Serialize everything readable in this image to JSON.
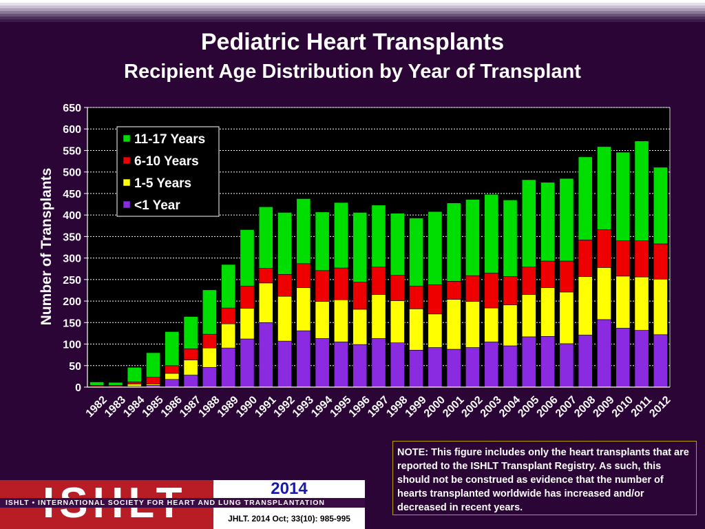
{
  "title": "Pediatric Heart Transplants",
  "subtitle": "Recipient Age Distribution by Year of Transplant",
  "note": "NOTE: This figure includes only the heart transplants that are reported to the ISHLT Transplant Registry.  As such, this should not be construed as evidence that the number of hearts transplanted worldwide has increased and/or decreased in recent years.",
  "logo": {
    "letters": "ISHLT",
    "org_line": "ISHLT • INTERNATIONAL SOCIETY FOR HEART AND LUNG TRANSPLANTATION",
    "year": "2014",
    "citation": "JHLT. 2014 Oct; 33(10): 985-995"
  },
  "colors": {
    "background": "#2a0535",
    "lt1": "#8a2be2",
    "y1_5": "#ffff00",
    "y6_10": "#ee0000",
    "y11_17": "#00dd00"
  },
  "chart_data": {
    "type": "bar",
    "stacked": true,
    "ylabel": "Number of Transplants",
    "xlabel": "",
    "ylim": [
      0,
      650
    ],
    "yticks": [
      0,
      50,
      100,
      150,
      200,
      250,
      300,
      350,
      400,
      450,
      500,
      550,
      600,
      650
    ],
    "grid": true,
    "legend": "top-left",
    "categories": [
      "1982",
      "1983",
      "1984",
      "1985",
      "1986",
      "1987",
      "1988",
      "1989",
      "1990",
      "1991",
      "1992",
      "1993",
      "1994",
      "1995",
      "1996",
      "1997",
      "1998",
      "1999",
      "2000",
      "2001",
      "2002",
      "2003",
      "2004",
      "2005",
      "2006",
      "2007",
      "2008",
      "2009",
      "2010",
      "2011",
      "2012"
    ],
    "series": [
      {
        "name": "<1 Year",
        "color": "#8a2be2",
        "values": [
          1,
          1,
          2,
          4,
          18,
          28,
          46,
          91,
          112,
          150,
          107,
          131,
          113,
          105,
          99,
          113,
          103,
          86,
          92,
          88,
          92,
          105,
          96,
          117,
          118,
          101,
          121,
          157,
          137,
          132,
          122
        ]
      },
      {
        "name": "1-5 Years",
        "color": "#ffff00",
        "values": [
          1,
          1,
          5,
          3,
          14,
          35,
          45,
          56,
          71,
          92,
          104,
          100,
          86,
          98,
          82,
          102,
          98,
          96,
          78,
          116,
          107,
          79,
          95,
          98,
          113,
          120,
          136,
          121,
          121,
          124,
          129
        ]
      },
      {
        "name": "6-10 Years",
        "color": "#ee0000",
        "values": [
          2,
          2,
          5,
          16,
          18,
          26,
          32,
          37,
          52,
          34,
          51,
          56,
          72,
          74,
          63,
          64,
          59,
          53,
          68,
          42,
          60,
          81,
          66,
          64,
          62,
          72,
          85,
          88,
          82,
          84,
          82
        ]
      },
      {
        "name": "11-17 Years",
        "color": "#00dd00",
        "values": [
          8,
          7,
          34,
          57,
          79,
          75,
          103,
          101,
          131,
          143,
          144,
          151,
          136,
          152,
          162,
          144,
          144,
          158,
          170,
          182,
          177,
          183,
          178,
          203,
          183,
          192,
          193,
          193,
          206,
          232,
          178
        ]
      }
    ],
    "legend_order": [
      "11-17 Years",
      "6-10 Years",
      "1-5 Years",
      "<1 Year"
    ]
  }
}
